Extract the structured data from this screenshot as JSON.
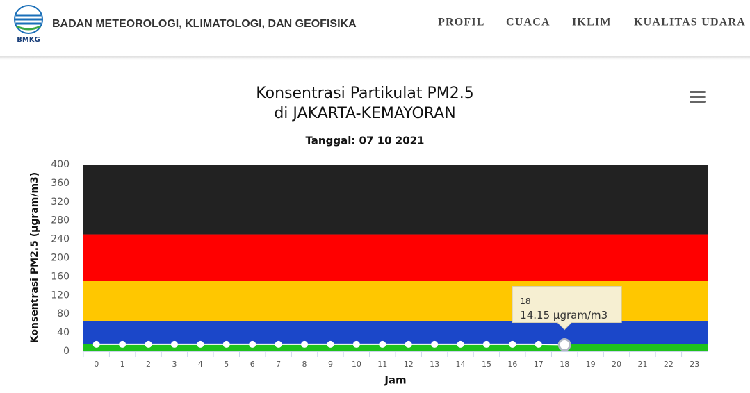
{
  "header": {
    "logo_text": "BMKG",
    "site_name": "BADAN METEOROLOGI, KLIMATOLOGI, DAN GEOFISIKA",
    "nav": [
      "PROFIL",
      "CUACA",
      "IKLIM",
      "KUALITAS UDARA"
    ]
  },
  "chart_data": {
    "type": "line",
    "title": "Konsentrasi Partikulat PM2.5",
    "title_line2": "di JAKARTA-KEMAYORAN",
    "subtitle": "Tanggal: 07 10 2021",
    "y_label": "Konsentrasi PM2.5 (µgram/m3)",
    "x_label": "Jam",
    "categories": [
      "0",
      "1",
      "2",
      "3",
      "4",
      "5",
      "6",
      "7",
      "8",
      "9",
      "10",
      "11",
      "12",
      "13",
      "14",
      "15",
      "16",
      "17",
      "18",
      "19",
      "20",
      "21",
      "22",
      "23"
    ],
    "series": [
      {
        "name": "PM2.5",
        "color": "#ffffff",
        "values": [
          15,
          15,
          15,
          15,
          15,
          15,
          15,
          15,
          15,
          15,
          15,
          15,
          15,
          15,
          15,
          15,
          15,
          15,
          14.15,
          null,
          null,
          null,
          null,
          null
        ]
      }
    ],
    "ylim": [
      0,
      400
    ],
    "yticks": [
      0,
      40,
      80,
      120,
      160,
      200,
      240,
      280,
      320,
      360,
      400
    ],
    "grid": false,
    "plot_bands": [
      {
        "from": 0,
        "to": 15.5,
        "color": "#1fc21c"
      },
      {
        "from": 15.5,
        "to": 65.5,
        "color": "#1b47c9"
      },
      {
        "from": 65.5,
        "to": 150.5,
        "color": "#ffc700"
      },
      {
        "from": 150.5,
        "to": 250.5,
        "color": "#ff0000"
      },
      {
        "from": 250.5,
        "to": 400,
        "color": "#222222"
      }
    ],
    "tooltip": {
      "title": "18",
      "text": "14.15 µgram/m3"
    }
  }
}
